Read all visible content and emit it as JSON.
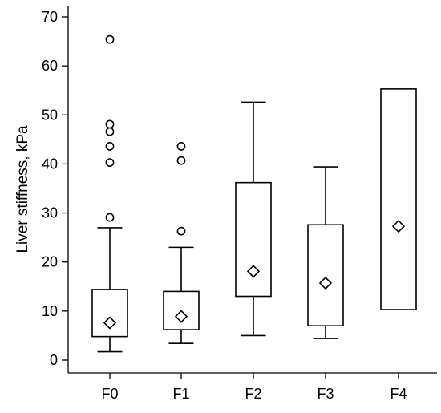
{
  "chart_data": {
    "type": "box",
    "title": "",
    "xlabel": "",
    "ylabel": "Liver stiffness, kPa",
    "ylim": [
      -2,
      72
    ],
    "yticks": [
      0,
      10,
      20,
      30,
      40,
      50,
      60,
      70
    ],
    "grid": false,
    "legend": "none",
    "categories": [
      "F0",
      "F1",
      "F2",
      "F3",
      "F4"
    ],
    "boxes": [
      {
        "category": "F0",
        "whisker_low": 1.7,
        "q1": 4.8,
        "q3": 14.4,
        "whisker_high": 27.0,
        "mean": 7.6,
        "outliers": [
          29.1,
          40.3,
          43.6,
          46.6,
          48.1,
          65.4
        ]
      },
      {
        "category": "F1",
        "whisker_low": 3.4,
        "q1": 6.2,
        "q3": 14.0,
        "whisker_high": 23.0,
        "mean": 8.9,
        "outliers": [
          26.3,
          40.7,
          43.6
        ]
      },
      {
        "category": "F2",
        "whisker_low": 5.0,
        "q1": 13.0,
        "q3": 36.2,
        "whisker_high": 52.6,
        "mean": 18.1,
        "outliers": []
      },
      {
        "category": "F3",
        "whisker_low": 4.4,
        "q1": 7.0,
        "q3": 27.6,
        "whisker_high": 39.4,
        "mean": 15.7,
        "outliers": []
      },
      {
        "category": "F4",
        "whisker_low": null,
        "q1": 10.3,
        "q3": 55.3,
        "whisker_high": null,
        "mean": 27.3,
        "outliers": []
      }
    ]
  }
}
